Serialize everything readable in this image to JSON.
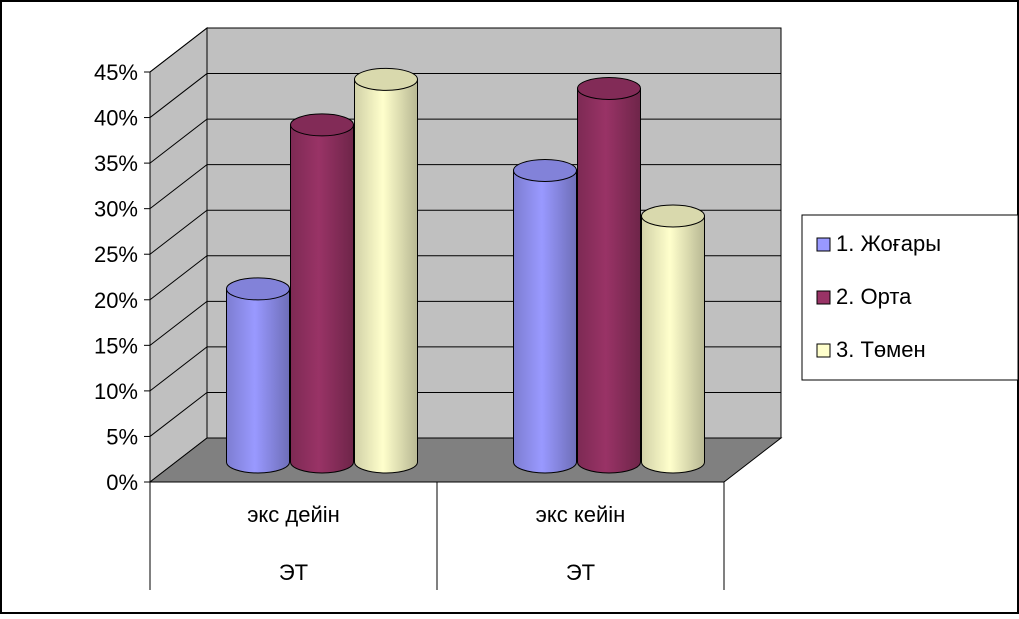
{
  "chart_data": {
    "type": "bar",
    "style": "3d-cylinder",
    "categories": [
      "экс дейін",
      "экс кейін"
    ],
    "category_group_label": "ЭТ",
    "series": [
      {
        "name": "1. Жоғары",
        "color": "#9999FF",
        "values": [
          0.19,
          0.32
        ]
      },
      {
        "name": "2. Орта",
        "color": "#993366",
        "values": [
          0.37,
          0.41
        ]
      },
      {
        "name": "3. Төмен",
        "color": "#FFFFCC",
        "values": [
          0.42,
          0.27
        ]
      }
    ],
    "y_ticks": [
      "0%",
      "5%",
      "10%",
      "15%",
      "20%",
      "25%",
      "30%",
      "35%",
      "40%",
      "45%"
    ],
    "ylim": [
      0,
      0.45
    ],
    "grid": true,
    "legend_position": "right",
    "wall_color": "#C0C0C0",
    "floor_color": "#808080"
  }
}
